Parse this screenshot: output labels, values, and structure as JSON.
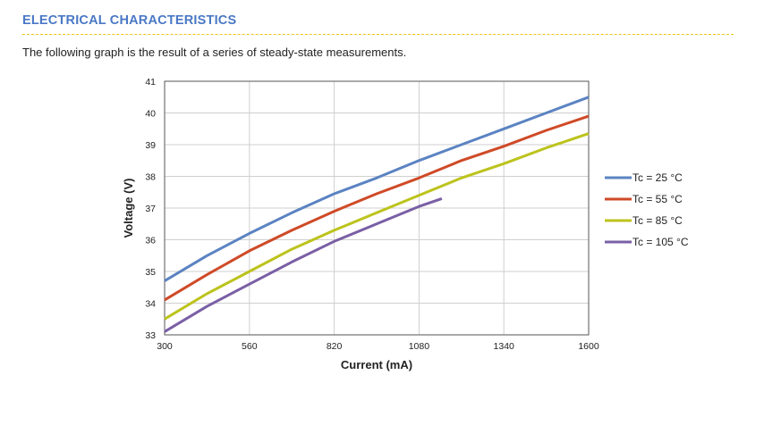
{
  "header": {
    "title": "ELECTRICAL CHARACTERISTICS",
    "intro": "The following graph is the result of a series of steady-state measurements."
  },
  "chart_data": {
    "type": "line",
    "xlabel": "Current (mA)",
    "ylabel": "Voltage (V)",
    "xlim": [
      300,
      1600
    ],
    "ylim": [
      33,
      41
    ],
    "xticks": [
      300,
      560,
      820,
      1080,
      1340,
      1600
    ],
    "yticks": [
      33,
      34,
      35,
      36,
      37,
      38,
      39,
      40,
      41
    ],
    "grid": true,
    "legend_position": "right",
    "series": [
      {
        "name": "Tc = 25 °C",
        "color": "#5b83c2",
        "x": [
          300,
          430,
          560,
          690,
          820,
          950,
          1080,
          1210,
          1340,
          1470,
          1600
        ],
        "y": [
          34.7,
          35.5,
          36.2,
          36.85,
          37.45,
          37.95,
          38.5,
          39.0,
          39.5,
          40.0,
          40.5
        ]
      },
      {
        "name": "Tc = 55 °C",
        "color": "#cf4a27",
        "x": [
          300,
          430,
          560,
          690,
          820,
          950,
          1080,
          1210,
          1340,
          1470,
          1600
        ],
        "y": [
          34.1,
          34.9,
          35.65,
          36.3,
          36.9,
          37.45,
          37.95,
          38.5,
          38.95,
          39.45,
          39.9
        ]
      },
      {
        "name": "Tc = 85 °C",
        "color": "#bcc31c",
        "x": [
          300,
          430,
          560,
          690,
          820,
          950,
          1080,
          1210,
          1340,
          1470,
          1600
        ],
        "y": [
          33.5,
          34.3,
          35.0,
          35.7,
          36.3,
          36.85,
          37.4,
          37.95,
          38.4,
          38.9,
          39.35
        ]
      },
      {
        "name": "Tc = 105 °C",
        "color": "#7a5fa5",
        "x": [
          300,
          430,
          560,
          690,
          820,
          950,
          1080,
          1150
        ],
        "y": [
          33.1,
          33.9,
          34.6,
          35.3,
          35.95,
          36.5,
          37.05,
          37.3
        ]
      }
    ]
  }
}
